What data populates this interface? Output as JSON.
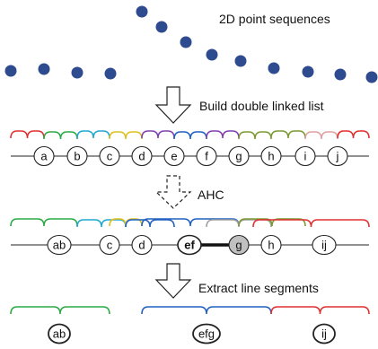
{
  "labels": {
    "title": "2D point sequences",
    "step1": "Build double linked list",
    "step2": "AHC",
    "step3": "Extract line segments"
  },
  "colors": {
    "point": "#2e4b8f",
    "red": "#e03030",
    "green": "#2aaa45",
    "cyan": "#20a8d0",
    "yellow": "#e0c020",
    "purple": "#8040b0",
    "blue": "#2060c0",
    "gray": "#a0a0a0",
    "olive": "#7a9a30",
    "pink": "#e0a0a0",
    "highlight_fill": "#c0c0c0"
  },
  "row1": {
    "nodes": [
      "a",
      "b",
      "c",
      "d",
      "e",
      "f",
      "g",
      "h",
      "i",
      "j"
    ]
  },
  "row2": {
    "nodes": [
      "ab",
      "c",
      "d",
      "ef",
      "g",
      "h",
      "ij"
    ],
    "bold_node": "ef",
    "highlight_node": "g"
  },
  "row3": {
    "nodes": [
      "ab",
      "efg",
      "ij"
    ]
  }
}
